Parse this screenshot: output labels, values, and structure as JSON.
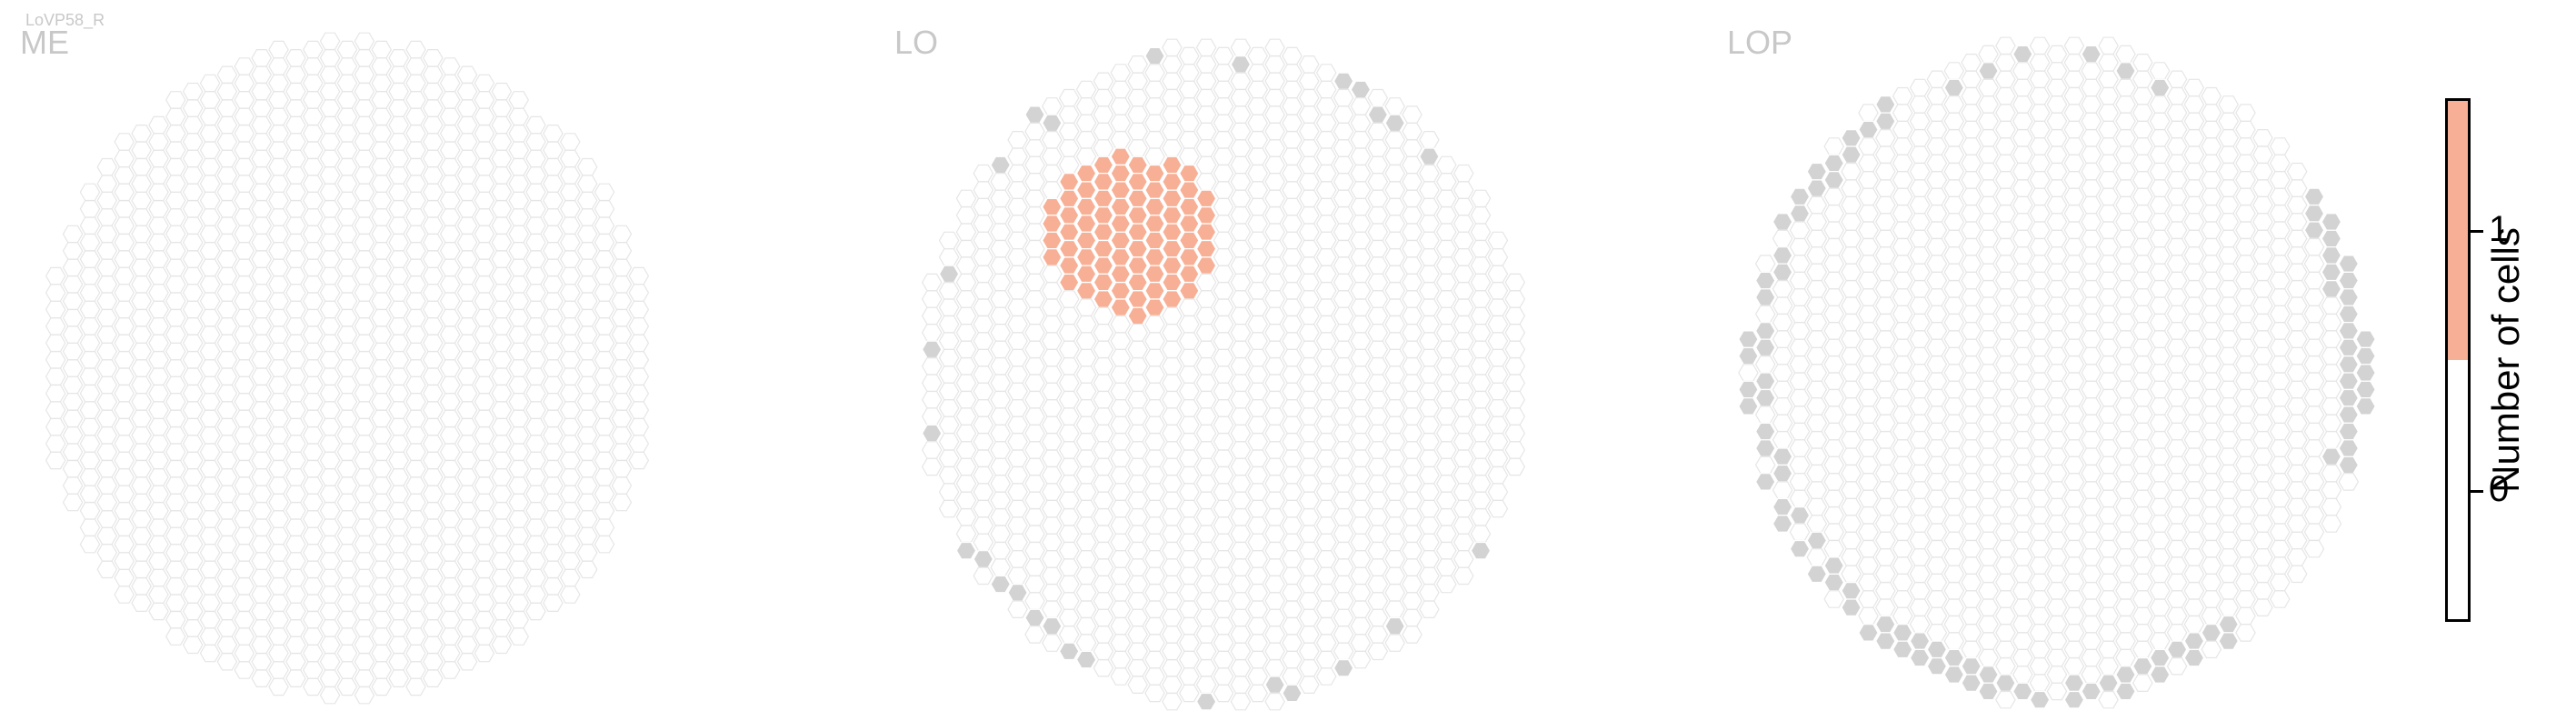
{
  "figure": {
    "cell_type_label": "LoVP58_R",
    "panels": [
      {
        "id": "me",
        "title": "ME"
      },
      {
        "id": "lo",
        "title": "LO"
      },
      {
        "id": "lop",
        "title": "LOP"
      }
    ]
  },
  "colorbar": {
    "title": "Number of cells",
    "ticks": [
      "1",
      "0"
    ]
  },
  "colors": {
    "empty_outline": "#e6e6e6",
    "grey_cell": "#d3d3d3",
    "count_1": "#f7b096",
    "count_0": "#ffffff",
    "panel_title": "#c8c8c8"
  }
}
